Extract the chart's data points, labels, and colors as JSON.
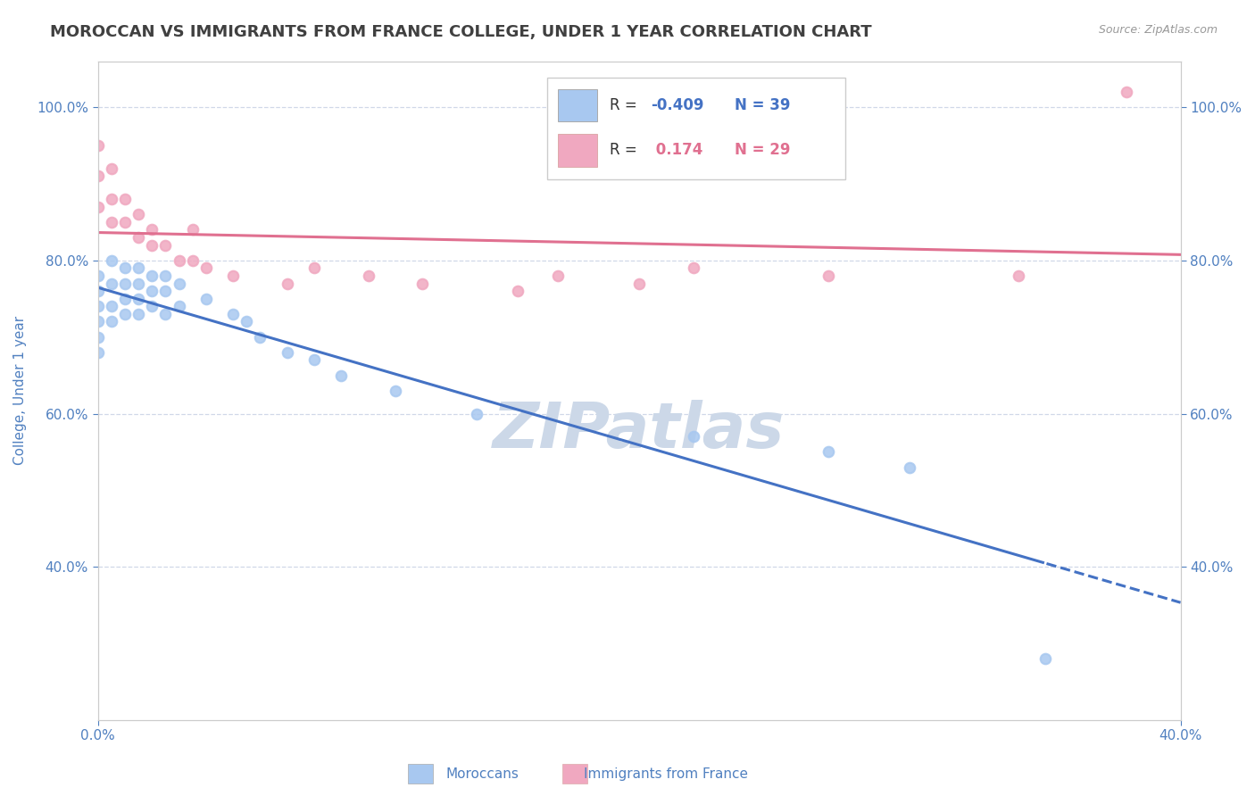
{
  "title": "MOROCCAN VS IMMIGRANTS FROM FRANCE COLLEGE, UNDER 1 YEAR CORRELATION CHART",
  "source": "Source: ZipAtlas.com",
  "ylabel": "College, Under 1 year",
  "xlim": [
    0.0,
    0.4
  ],
  "ylim": [
    0.2,
    1.06
  ],
  "x_tick_labels": [
    "0.0%",
    "40.0%"
  ],
  "y_tick_labels": [
    "40.0%",
    "60.0%",
    "80.0%",
    "100.0%"
  ],
  "y_ticks": [
    0.4,
    0.6,
    0.8,
    1.0
  ],
  "watermark": "ZIPatlas",
  "moroccan_x": [
    0.0,
    0.0,
    0.0,
    0.0,
    0.0,
    0.0,
    0.005,
    0.005,
    0.005,
    0.005,
    0.01,
    0.01,
    0.01,
    0.01,
    0.015,
    0.015,
    0.015,
    0.015,
    0.02,
    0.02,
    0.02,
    0.025,
    0.025,
    0.025,
    0.03,
    0.03,
    0.04,
    0.05,
    0.055,
    0.06,
    0.07,
    0.08,
    0.09,
    0.11,
    0.14,
    0.22,
    0.27,
    0.3,
    0.35
  ],
  "moroccan_y": [
    0.78,
    0.76,
    0.74,
    0.72,
    0.7,
    0.68,
    0.8,
    0.77,
    0.74,
    0.72,
    0.79,
    0.77,
    0.75,
    0.73,
    0.79,
    0.77,
    0.75,
    0.73,
    0.78,
    0.76,
    0.74,
    0.78,
    0.76,
    0.73,
    0.77,
    0.74,
    0.75,
    0.73,
    0.72,
    0.7,
    0.68,
    0.67,
    0.65,
    0.63,
    0.6,
    0.57,
    0.55,
    0.53,
    0.28
  ],
  "france_x": [
    0.0,
    0.0,
    0.0,
    0.005,
    0.005,
    0.005,
    0.01,
    0.01,
    0.015,
    0.015,
    0.02,
    0.02,
    0.025,
    0.03,
    0.035,
    0.035,
    0.04,
    0.05,
    0.07,
    0.08,
    0.1,
    0.12,
    0.155,
    0.17,
    0.2,
    0.22,
    0.27,
    0.34,
    0.38
  ],
  "france_y": [
    0.95,
    0.91,
    0.87,
    0.92,
    0.88,
    0.85,
    0.88,
    0.85,
    0.86,
    0.83,
    0.84,
    0.82,
    0.82,
    0.8,
    0.84,
    0.8,
    0.79,
    0.78,
    0.77,
    0.79,
    0.78,
    0.77,
    0.76,
    0.78,
    0.77,
    0.79,
    0.78,
    0.78,
    1.02
  ],
  "moroccan_color": "#a8c8f0",
  "france_color": "#f0a8c0",
  "moroccan_line_color": "#4472c4",
  "france_line_color": "#e07090",
  "title_color": "#404040",
  "axis_color": "#5080c0",
  "grid_color": "#d0d8e8",
  "watermark_color": "#ccd8e8"
}
